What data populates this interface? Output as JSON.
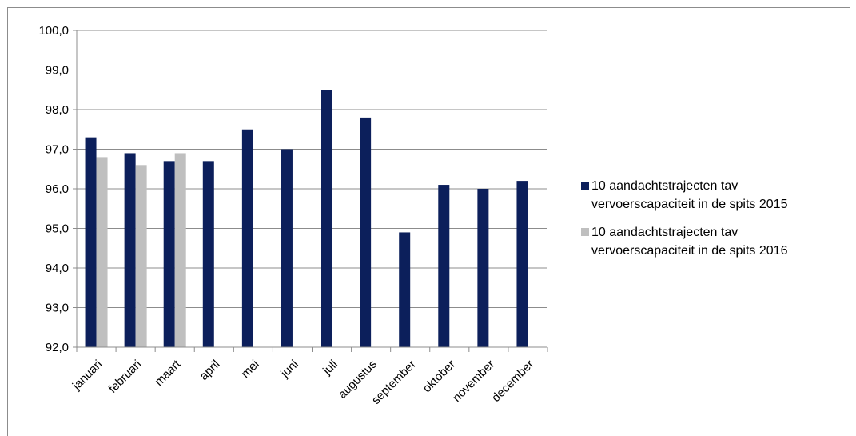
{
  "chart_data": {
    "type": "bar",
    "title": "",
    "xlabel": "",
    "ylabel": "",
    "ylim": [
      92.0,
      100.0
    ],
    "ytick_step": 1.0,
    "ytick_labels": [
      "92,0",
      "93,0",
      "94,0",
      "95,0",
      "96,0",
      "97,0",
      "98,0",
      "99,0",
      "100,0"
    ],
    "categories": [
      "januari",
      "februari",
      "maart",
      "april",
      "mei",
      "juni",
      "juli",
      "augustus",
      "september",
      "oktober",
      "november",
      "december"
    ],
    "series": [
      {
        "name": "10 aandachtstrajecten tav vervoerscapaciteit in de spits 2015",
        "name_lines": [
          "10 aandachtstrajecten tav",
          "vervoerscapaciteit in de spits 2015"
        ],
        "color": "#0c1f5b",
        "values": [
          97.3,
          96.9,
          96.7,
          96.7,
          97.5,
          97.0,
          98.5,
          97.8,
          94.9,
          96.1,
          96.0,
          96.2
        ]
      },
      {
        "name": "10 aandachtstrajecten tav vervoerscapaciteit in de spits 2016",
        "name_lines": [
          "10 aandachtstrajecten tav",
          "vervoerscapaciteit in de spits 2016"
        ],
        "color": "#bfbfbf",
        "values": [
          96.8,
          96.6,
          96.9,
          null,
          null,
          null,
          null,
          null,
          null,
          null,
          null,
          null
        ]
      }
    ],
    "grid": true,
    "legend_position": "right"
  }
}
